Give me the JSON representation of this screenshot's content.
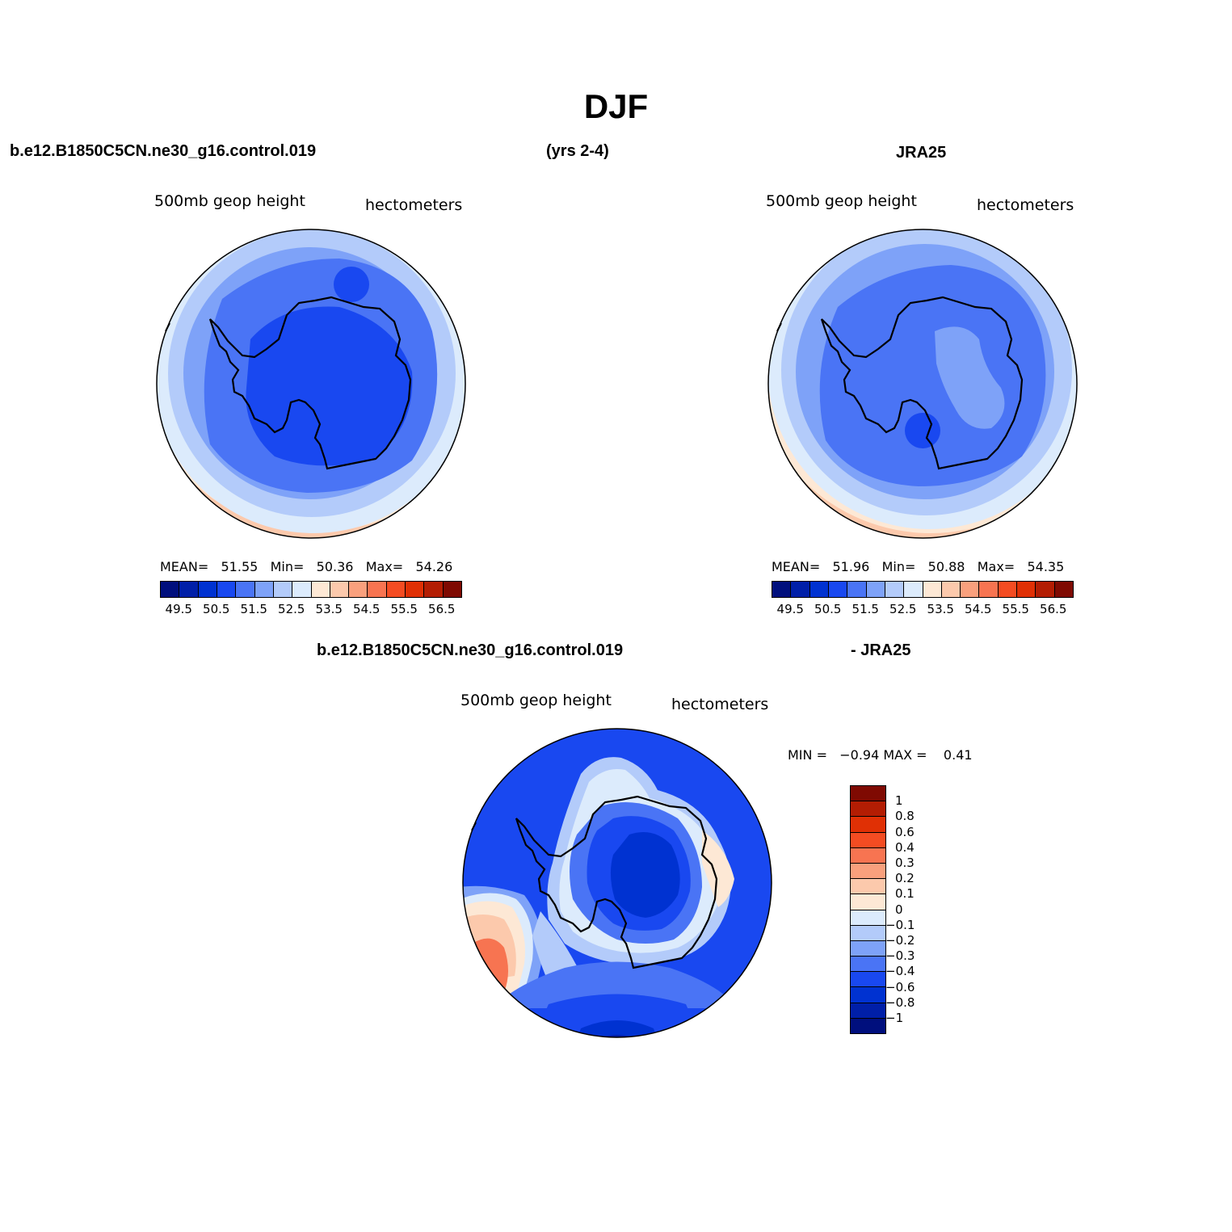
{
  "title": "DJF",
  "top_left": {
    "case": "b.e12.B1850C5CN.ne30_g16.control.019",
    "years": "(yrs 2-4)",
    "variable": "500mb  geop  height",
    "units": "hectometers",
    "stats": {
      "mean_label": "MEAN=",
      "mean": "51.55",
      "min_label": "Min=",
      "min": "50.36",
      "max_label": "Max=",
      "max": "54.26"
    }
  },
  "top_right": {
    "case": "JRA25",
    "variable": "500mb  geop  height",
    "units": "hectometers",
    "stats": {
      "mean_label": "MEAN=",
      "mean": "51.96",
      "min_label": "Min=",
      "min": "50.88",
      "max_label": "Max=",
      "max": "54.35"
    }
  },
  "bottom": {
    "case": "b.e12.B1850C5CN.ne30_g16.control.019",
    "minus": "- JRA25",
    "variable": "500mb  geop  height",
    "units": "hectometers",
    "stats": {
      "min_label": "MIN =",
      "min": "−0.94",
      "max_label": "MAX =",
      "max": "0.41"
    }
  },
  "colorbar_abs": {
    "labels": [
      "49.5",
      "50.5",
      "51.5",
      "52.5",
      "53.5",
      "54.5",
      "55.5",
      "56.5"
    ],
    "colors": [
      "#000f7d",
      "#001fa8",
      "#0032d1",
      "#1948f0",
      "#4a74f5",
      "#7ea2f8",
      "#b3cbfa",
      "#dcebfc",
      "#fde8d5",
      "#fcc9ac",
      "#f9a07d",
      "#f77451",
      "#f44c22",
      "#e03005",
      "#b31d03",
      "#7f0a02"
    ]
  },
  "colorbar_diff": {
    "labels": [
      "1",
      "0.8",
      "0.6",
      "0.4",
      "0.3",
      "0.2",
      "0.1",
      "0",
      "−0.1",
      "−0.2",
      "−0.3",
      "−0.4",
      "−0.6",
      "−0.8",
      "−1"
    ],
    "colors": [
      "#7f0a02",
      "#b31d03",
      "#e03005",
      "#f44c22",
      "#f77451",
      "#f9a07d",
      "#fcc9ac",
      "#fde8d5",
      "#dcebfc",
      "#b3cbfa",
      "#7ea2f8",
      "#4a74f5",
      "#1948f0",
      "#0032d1",
      "#001fa8",
      "#000f7d"
    ]
  }
}
